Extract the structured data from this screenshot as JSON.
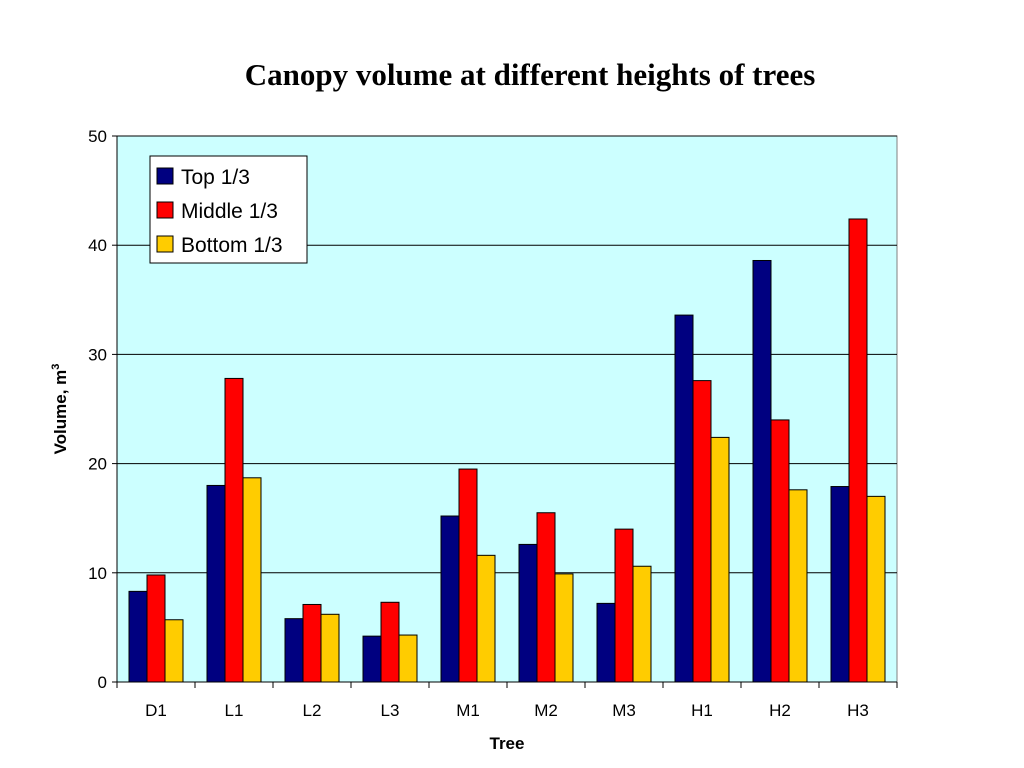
{
  "chart_data": {
    "type": "bar",
    "title": "Canopy volume at different heights of trees",
    "xlabel": "Tree",
    "ylabel": "Volume, m",
    "ylabel_superscript": "3",
    "categories": [
      "D1",
      "L1",
      "L2",
      "L3",
      "M1",
      "M2",
      "M3",
      "H1",
      "H2",
      "H3"
    ],
    "series": [
      {
        "name": "Top 1/3",
        "color": "#000080",
        "values": [
          8.3,
          18.0,
          5.8,
          4.2,
          15.2,
          12.6,
          7.2,
          33.6,
          38.6,
          17.9
        ]
      },
      {
        "name": "Middle 1/3",
        "color": "#ff0000",
        "values": [
          9.8,
          27.8,
          7.1,
          7.3,
          19.5,
          15.5,
          14.0,
          27.6,
          24.0,
          42.4
        ]
      },
      {
        "name": "Bottom 1/3",
        "color": "#ffcc00",
        "values": [
          5.7,
          18.7,
          6.2,
          4.3,
          11.6,
          9.9,
          10.6,
          22.4,
          17.6,
          17.0
        ]
      }
    ],
    "ylim": [
      0,
      50
    ],
    "yticks": [
      "0",
      "10",
      "20",
      "30",
      "40",
      "50"
    ],
    "grid": true,
    "legend_position": "top-left",
    "plot_background": "#ccffff"
  }
}
